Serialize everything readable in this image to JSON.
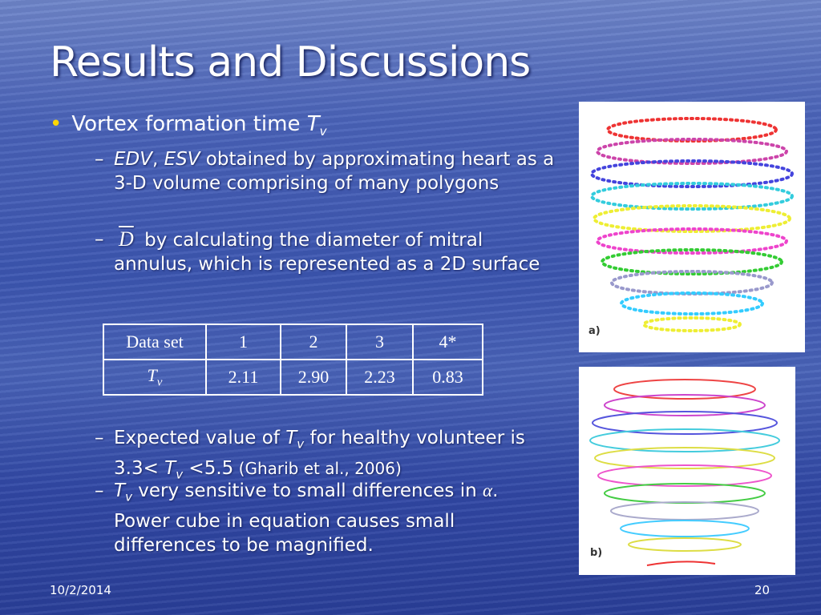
{
  "title": "Results and Discussions",
  "bullet": {
    "text": "Vortex formation time ",
    "symbol": "T",
    "subscript": "v"
  },
  "sub_bullets_top": [
    {
      "dash": "–",
      "parts": [
        "EDV",
        ", ",
        "ESV",
        " obtained by approximating heart as a 3-D volume comprising of many polygons"
      ]
    },
    {
      "dash": "–",
      "symbol": "D",
      "text": " by calculating the diameter of mitral annulus, which is represented as a 2D surface"
    }
  ],
  "table": {
    "header": [
      "Data set",
      "1",
      "2",
      "3",
      "4*"
    ],
    "row": {
      "symbol": "T",
      "subscript": "v",
      "cells": [
        "2.11",
        "2.90",
        "2.23",
        "0.83"
      ]
    }
  },
  "sub_bullets_bottom": [
    {
      "dash": "–",
      "parts": [
        "Expected value of ",
        "T",
        "v",
        " for healthy volunteer is 3.3< ",
        "T",
        "v",
        " <5.5",
        " (Gharib et al., 2006)"
      ]
    },
    {
      "dash": "–",
      "parts": [
        "T",
        "v",
        " very sensitive to small differences in ",
        "α",
        ". Power cube in equation causes small differences to be magnified."
      ]
    }
  ],
  "figures": [
    {
      "label": "a)"
    },
    {
      "label": "b)"
    }
  ],
  "footer": {
    "date": "10/2/2014",
    "page": "20"
  }
}
